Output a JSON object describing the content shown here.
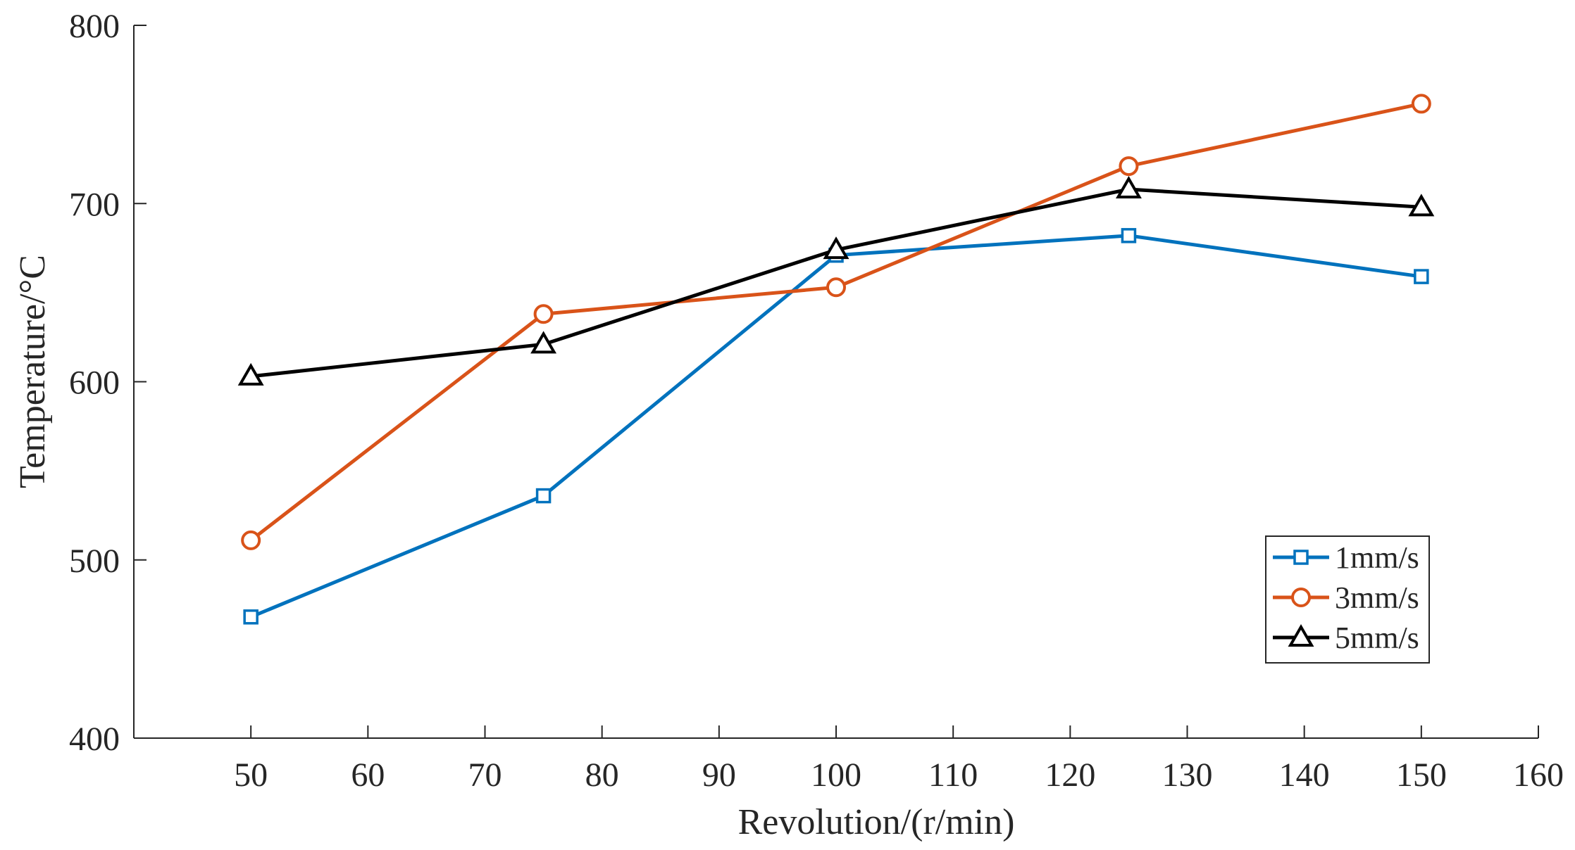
{
  "chart_data": {
    "type": "line",
    "title": "",
    "xlabel": "Revolution/(r/min)",
    "ylabel": "Temperature/°C",
    "xlim": [
      40,
      160
    ],
    "ylim": [
      400,
      800
    ],
    "xticks": [
      "50",
      "60",
      "70",
      "80",
      "90",
      "100",
      "110",
      "120",
      "130",
      "140",
      "150",
      "160"
    ],
    "yticks": [
      "400",
      "500",
      "600",
      "700",
      "800"
    ],
    "grid": false,
    "legend_position": "bottom-right",
    "x": [
      50,
      75,
      100,
      125,
      150
    ],
    "series": [
      {
        "name": "1mm/s",
        "marker": "square",
        "color": "#0072BD",
        "values": [
          468,
          536,
          671,
          682,
          659
        ]
      },
      {
        "name": "3mm/s",
        "marker": "circle",
        "color": "#D95319",
        "values": [
          511,
          638,
          653,
          721,
          756
        ]
      },
      {
        "name": "5mm/s",
        "marker": "triangle",
        "color": "#000000",
        "values": [
          603,
          621,
          674,
          708,
          698
        ]
      }
    ]
  }
}
